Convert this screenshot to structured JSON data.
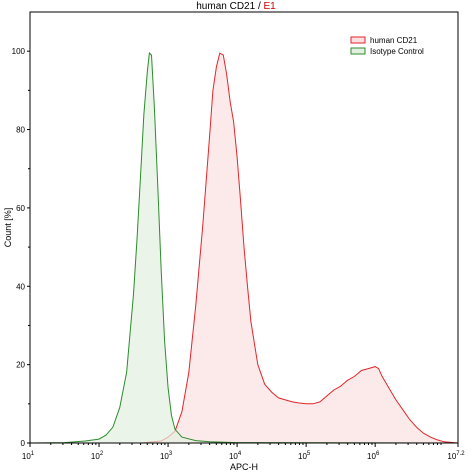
{
  "chart_data": {
    "type": "area",
    "title": {
      "sample": "human CD21",
      "separator": " / ",
      "gate": "E1"
    },
    "xlabel": "APC-H",
    "ylabel": "Count [%]",
    "x_scale": "log10",
    "xlim_exponent": [
      1,
      7.2
    ],
    "ylim": [
      0,
      110
    ],
    "yticks": [
      "0",
      "20",
      "40",
      "60",
      "80",
      "100"
    ],
    "xticks": [
      {
        "base": "10",
        "exp": "1"
      },
      {
        "base": "10",
        "exp": "2"
      },
      {
        "base": "10",
        "exp": "3"
      },
      {
        "base": "10",
        "exp": "4"
      },
      {
        "base": "10",
        "exp": "5"
      },
      {
        "base": "10",
        "exp": "6"
      },
      {
        "base": "10",
        "exp": "7.2"
      }
    ],
    "legend_position": "top-right",
    "series": [
      {
        "name": "human CD21",
        "stroke": "#e0262b",
        "fill": "#fbe0e1",
        "points": [
          [
            1.0,
            0
          ],
          [
            2.6,
            0
          ],
          [
            2.9,
            0.5
          ],
          [
            3.0,
            1.5
          ],
          [
            3.1,
            3
          ],
          [
            3.2,
            8
          ],
          [
            3.3,
            18
          ],
          [
            3.4,
            35
          ],
          [
            3.5,
            55
          ],
          [
            3.6,
            78
          ],
          [
            3.65,
            90
          ],
          [
            3.7,
            96
          ],
          [
            3.75,
            99.5
          ],
          [
            3.8,
            99
          ],
          [
            3.85,
            94
          ],
          [
            3.9,
            87
          ],
          [
            3.95,
            82
          ],
          [
            4.0,
            73
          ],
          [
            4.05,
            62
          ],
          [
            4.1,
            50
          ],
          [
            4.15,
            40
          ],
          [
            4.2,
            31
          ],
          [
            4.3,
            20
          ],
          [
            4.4,
            15
          ],
          [
            4.5,
            13
          ],
          [
            4.6,
            11.5
          ],
          [
            4.7,
            11
          ],
          [
            4.8,
            10.5
          ],
          [
            4.9,
            10.2
          ],
          [
            5.0,
            10
          ],
          [
            5.1,
            10
          ],
          [
            5.2,
            10.5
          ],
          [
            5.3,
            12
          ],
          [
            5.4,
            13.5
          ],
          [
            5.5,
            14.5
          ],
          [
            5.6,
            16
          ],
          [
            5.7,
            17
          ],
          [
            5.8,
            18.5
          ],
          [
            5.9,
            19
          ],
          [
            6.0,
            19.5
          ],
          [
            6.05,
            19
          ],
          [
            6.1,
            17
          ],
          [
            6.2,
            14
          ],
          [
            6.3,
            11
          ],
          [
            6.4,
            8.5
          ],
          [
            6.5,
            6
          ],
          [
            6.6,
            4
          ],
          [
            6.7,
            2.5
          ],
          [
            6.8,
            1.5
          ],
          [
            6.9,
            0.8
          ],
          [
            7.0,
            0.3
          ],
          [
            7.2,
            0
          ]
        ]
      },
      {
        "name": "Isotype Control",
        "stroke": "#2e8b2e",
        "fill": "#e3f0e0",
        "points": [
          [
            1.0,
            0
          ],
          [
            1.5,
            0.1
          ],
          [
            1.8,
            0.5
          ],
          [
            2.0,
            1
          ],
          [
            2.1,
            2
          ],
          [
            2.2,
            4
          ],
          [
            2.3,
            9
          ],
          [
            2.4,
            18
          ],
          [
            2.5,
            38
          ],
          [
            2.55,
            52
          ],
          [
            2.6,
            68
          ],
          [
            2.65,
            84
          ],
          [
            2.7,
            95
          ],
          [
            2.73,
            99.5
          ],
          [
            2.76,
            99
          ],
          [
            2.8,
            86
          ],
          [
            2.85,
            66
          ],
          [
            2.9,
            44
          ],
          [
            2.95,
            26
          ],
          [
            3.0,
            14
          ],
          [
            3.05,
            7
          ],
          [
            3.1,
            3.5
          ],
          [
            3.2,
            1.5
          ],
          [
            3.4,
            0.6
          ],
          [
            3.6,
            0.3
          ],
          [
            4.0,
            0.1
          ],
          [
            7.2,
            0
          ]
        ]
      }
    ]
  }
}
